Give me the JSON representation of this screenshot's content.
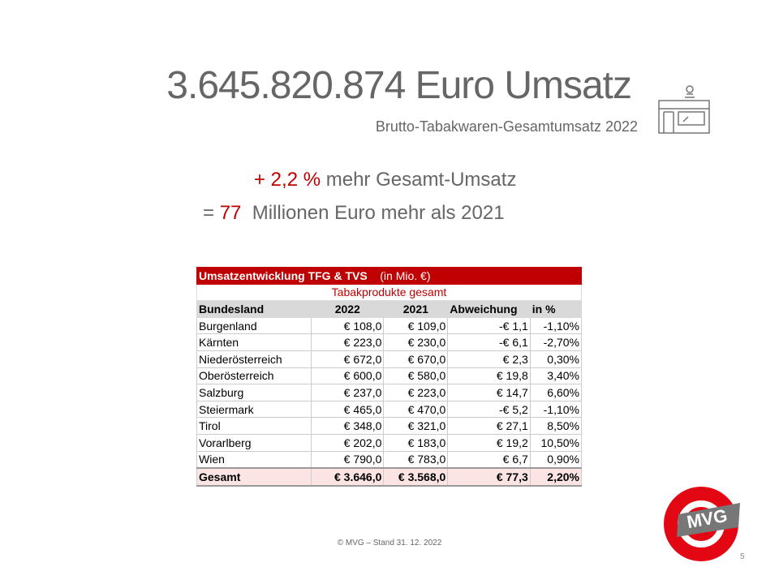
{
  "header": {
    "title": "3.645.820.874 Euro Umsatz",
    "subtitle": "Brutto-Tabakwaren-Gesamtumsatz  2022"
  },
  "highlights": {
    "line1": {
      "accent": "+ 2,2 %",
      "text": "mehr Gesamt-Umsatz"
    },
    "line2": {
      "prefix": "=",
      "accent": "77",
      "text": "Millionen Euro mehr als 2021"
    }
  },
  "table": {
    "title": "Umsatzentwicklung TFG & TVS",
    "unit": "(in Mio. €)",
    "subtitle": "Tabakprodukte gesamt",
    "columns": [
      "Bundesland",
      "2022",
      "2021",
      "Abweichung",
      "in %"
    ],
    "rows": [
      [
        "Burgenland",
        "€ 108,0",
        "€ 109,0",
        "-€ 1,1",
        "-1,10%"
      ],
      [
        "Kärnten",
        "€ 223,0",
        "€ 230,0",
        "-€ 6,1",
        "-2,70%"
      ],
      [
        "Niederösterreich",
        "€ 672,0",
        "€ 670,0",
        "€ 2,3",
        "0,30%"
      ],
      [
        "Oberösterreich",
        "€ 600,0",
        "€ 580,0",
        "€ 19,8",
        "3,40%"
      ],
      [
        "Salzburg",
        "€ 237,0",
        "€ 223,0",
        "€ 14,7",
        "6,60%"
      ],
      [
        "Steiermark",
        "€ 465,0",
        "€ 470,0",
        "-€ 5,2",
        "-1,10%"
      ],
      [
        "Tirol",
        "€ 348,0",
        "€ 321,0",
        "€ 27,1",
        "8,50%"
      ],
      [
        "Vorarlberg",
        "€ 202,0",
        "€ 183,0",
        "€ 19,2",
        "10,50%"
      ],
      [
        "Wien",
        "€ 790,0",
        "€ 783,0",
        "€ 6,7",
        "0,90%"
      ]
    ],
    "total": [
      "Gesamt",
      "€ 3.646,0",
      "€ 3.568,0",
      "€ 77,3",
      "2,20%"
    ]
  },
  "footer": {
    "copyright": "© MVG – Stand 31. 12. 2022",
    "page": "5",
    "logo": "MVG"
  }
}
